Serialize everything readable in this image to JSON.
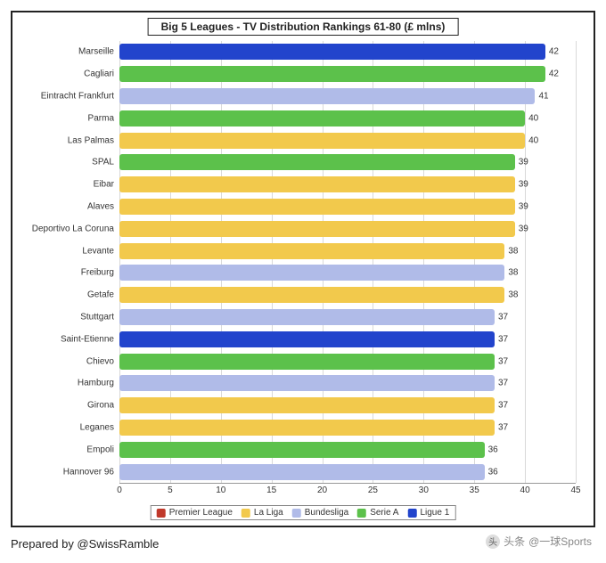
{
  "chart": {
    "type": "bar",
    "title": "Big 5 Leagues - TV Distribution Rankings 61-80 (£ mlns)",
    "title_fontsize": 12,
    "xlim": [
      0,
      45
    ],
    "xtick_step": 5,
    "xticks": [
      0,
      5,
      10,
      15,
      20,
      25,
      30,
      35,
      40,
      45
    ],
    "bar_height_ratio": 0.72,
    "background_color": "#ffffff",
    "grid_color": "#d9d9d9",
    "border_color": "#222222",
    "label_fontsize": 10,
    "value_label_fontsize": 10,
    "bar_border_radius": 3,
    "leagues": {
      "Premier League": "#c0392b",
      "La Liga": "#f2c94c",
      "Bundesliga": "#b0bbe8",
      "Serie A": "#5cc14b",
      "Ligue 1": "#2244cc"
    },
    "legend_order": [
      "Premier League",
      "La Liga",
      "Bundesliga",
      "Serie A",
      "Ligue 1"
    ],
    "rows": [
      {
        "club": "Marseille",
        "value": 42,
        "league": "Ligue 1"
      },
      {
        "club": "Cagliari",
        "value": 42,
        "league": "Serie A"
      },
      {
        "club": "Eintracht Frankfurt",
        "value": 41,
        "league": "Bundesliga"
      },
      {
        "club": "Parma",
        "value": 40,
        "league": "Serie A"
      },
      {
        "club": "Las Palmas",
        "value": 40,
        "league": "La Liga"
      },
      {
        "club": "SPAL",
        "value": 39,
        "league": "Serie A"
      },
      {
        "club": "Eibar",
        "value": 39,
        "league": "La Liga"
      },
      {
        "club": "Alaves",
        "value": 39,
        "league": "La Liga"
      },
      {
        "club": "Deportivo La Coruna",
        "value": 39,
        "league": "La Liga"
      },
      {
        "club": "Levante",
        "value": 38,
        "league": "La Liga"
      },
      {
        "club": "Freiburg",
        "value": 38,
        "league": "Bundesliga"
      },
      {
        "club": "Getafe",
        "value": 38,
        "league": "La Liga"
      },
      {
        "club": "Stuttgart",
        "value": 37,
        "league": "Bundesliga"
      },
      {
        "club": "Saint-Etienne",
        "value": 37,
        "league": "Ligue 1"
      },
      {
        "club": "Chievo",
        "value": 37,
        "league": "Serie A"
      },
      {
        "club": "Hamburg",
        "value": 37,
        "league": "Bundesliga"
      },
      {
        "club": "Girona",
        "value": 37,
        "league": "La Liga"
      },
      {
        "club": "Leganes",
        "value": 37,
        "league": "La Liga"
      },
      {
        "club": "Empoli",
        "value": 36,
        "league": "Serie A"
      },
      {
        "club": "Hannover 96",
        "value": 36,
        "league": "Bundesliga"
      }
    ]
  },
  "credit": "Prepared by @SwissRamble",
  "watermark": {
    "prefix": "头条",
    "handle": "@一球Sports"
  }
}
